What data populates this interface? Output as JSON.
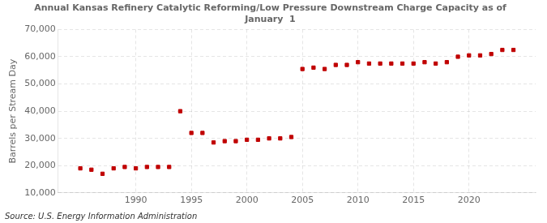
{
  "chart_data": {
    "type": "scatter",
    "title": "Annual Kansas Refinery Catalytic Reforming/Low Pressure Downstream Charge Capacity as of\nJanuary  1",
    "ylabel": "Barrels per Stream Day",
    "annotations": [
      "Source: U.S. Energy Information Administration"
    ],
    "x": [
      1985,
      1986,
      1987,
      1988,
      1989,
      1990,
      1991,
      1992,
      1993,
      1994,
      1995,
      1996,
      1997,
      1998,
      1999,
      2000,
      2001,
      2002,
      2003,
      2004,
      2005,
      2006,
      2007,
      2008,
      2009,
      2010,
      2011,
      2012,
      2013,
      2014,
      2015,
      2016,
      2017,
      2018,
      2019,
      2020,
      2021,
      2022,
      2023,
      2024
    ],
    "values": [
      19000,
      18500,
      17000,
      19000,
      19500,
      19000,
      19500,
      19500,
      19500,
      40000,
      32000,
      32000,
      28500,
      29000,
      29000,
      29500,
      29500,
      30000,
      30000,
      30500,
      55500,
      56000,
      55500,
      57000,
      57000,
      58000,
      57500,
      57500,
      57500,
      57500,
      57500,
      58000,
      57500,
      58000,
      60000,
      60500,
      60500,
      61000,
      62500,
      62500
    ],
    "color": "#c00000",
    "marker": "square",
    "xlim": [
      1983,
      2026
    ],
    "xticks": [
      1990,
      1995,
      2000,
      2005,
      2010,
      2015,
      2020
    ],
    "ylim": [
      10000,
      70000
    ],
    "yticks": [
      {
        "value": 10000,
        "label": "10,000"
      },
      {
        "value": 20000,
        "label": "20,000"
      },
      {
        "value": 30000,
        "label": "30,000"
      },
      {
        "value": 40000,
        "label": "40,000"
      },
      {
        "value": 50000,
        "label": "50,000"
      },
      {
        "value": 60000,
        "label": "60,000"
      },
      {
        "value": 70000,
        "label": "70,000"
      }
    ],
    "grid": true
  }
}
